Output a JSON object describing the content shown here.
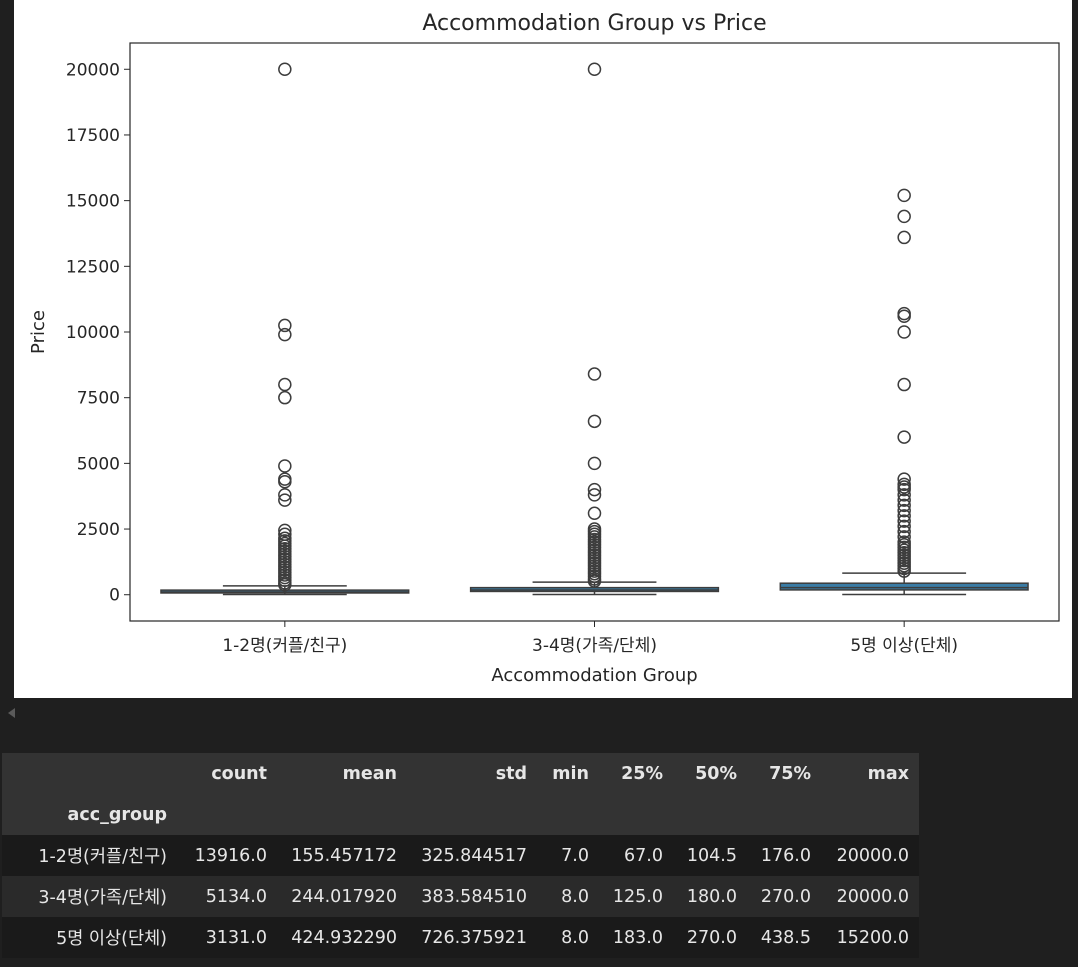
{
  "chart_data": {
    "type": "box",
    "title": "Accommodation Group vs Price",
    "xlabel": "Accommodation Group",
    "ylabel": "Price",
    "ylim": [
      -1000,
      21000
    ],
    "yticks": [
      0,
      2500,
      5000,
      7500,
      10000,
      12500,
      15000,
      17500,
      20000
    ],
    "categories": [
      "1-2명(커플/친구)",
      "3-4명(가족/단체)",
      "5명 이상(단체)"
    ],
    "box_color": "#3a7ca5",
    "boxes": [
      {
        "category": "1-2명(커플/친구)",
        "q1": 67,
        "median": 104.5,
        "q3": 176,
        "whisker_low": 7,
        "whisker_high": 338,
        "outliers": [
          20000,
          10250,
          9900,
          8000,
          7500,
          4900,
          4400,
          4300,
          3800,
          3600,
          2450,
          2300,
          2150,
          2050,
          1950,
          1850,
          1750,
          1650,
          1550,
          1450,
          1350,
          1250,
          1150,
          1050,
          950,
          850,
          750,
          650,
          550,
          450,
          380
        ]
      },
      {
        "category": "3-4명(가족/단체)",
        "q1": 125,
        "median": 180,
        "q3": 270,
        "whisker_low": 8,
        "whisker_high": 480,
        "outliers": [
          20000,
          8400,
          6600,
          5000,
          4000,
          3800,
          3100,
          2500,
          2400,
          2300,
          2200,
          2100,
          2000,
          1900,
          1800,
          1700,
          1600,
          1500,
          1400,
          1300,
          1200,
          1100,
          1000,
          900,
          800,
          700,
          600,
          520
        ]
      },
      {
        "category": "5명 이상(단체)",
        "q1": 183,
        "median": 270,
        "q3": 438.5,
        "whisker_low": 8,
        "whisker_high": 820,
        "outliers": [
          15200,
          14400,
          13600,
          10700,
          10600,
          10000,
          8000,
          6000,
          4400,
          4200,
          4100,
          4000,
          3800,
          3600,
          3400,
          3200,
          3000,
          2800,
          2600,
          2400,
          2200,
          2000,
          1900,
          1800,
          1700,
          1600,
          1500,
          1400,
          1300,
          1200,
          1100,
          1000,
          900
        ]
      }
    ]
  },
  "table": {
    "columns": [
      "count",
      "mean",
      "std",
      "min",
      "25%",
      "50%",
      "75%",
      "max"
    ],
    "index_name": "acc_group",
    "rows": [
      {
        "label": "1-2명(커플/친구)",
        "values": [
          "13916.0",
          "155.457172",
          "325.844517",
          "7.0",
          "67.0",
          "104.5",
          "176.0",
          "20000.0"
        ]
      },
      {
        "label": "3-4명(가족/단체)",
        "values": [
          "5134.0",
          "244.017920",
          "383.584510",
          "8.0",
          "125.0",
          "180.0",
          "270.0",
          "20000.0"
        ]
      },
      {
        "label": "5명 이상(단체)",
        "values": [
          "3131.0",
          "424.932290",
          "726.375921",
          "8.0",
          "183.0",
          "270.0",
          "438.5",
          "15200.0"
        ]
      }
    ]
  }
}
